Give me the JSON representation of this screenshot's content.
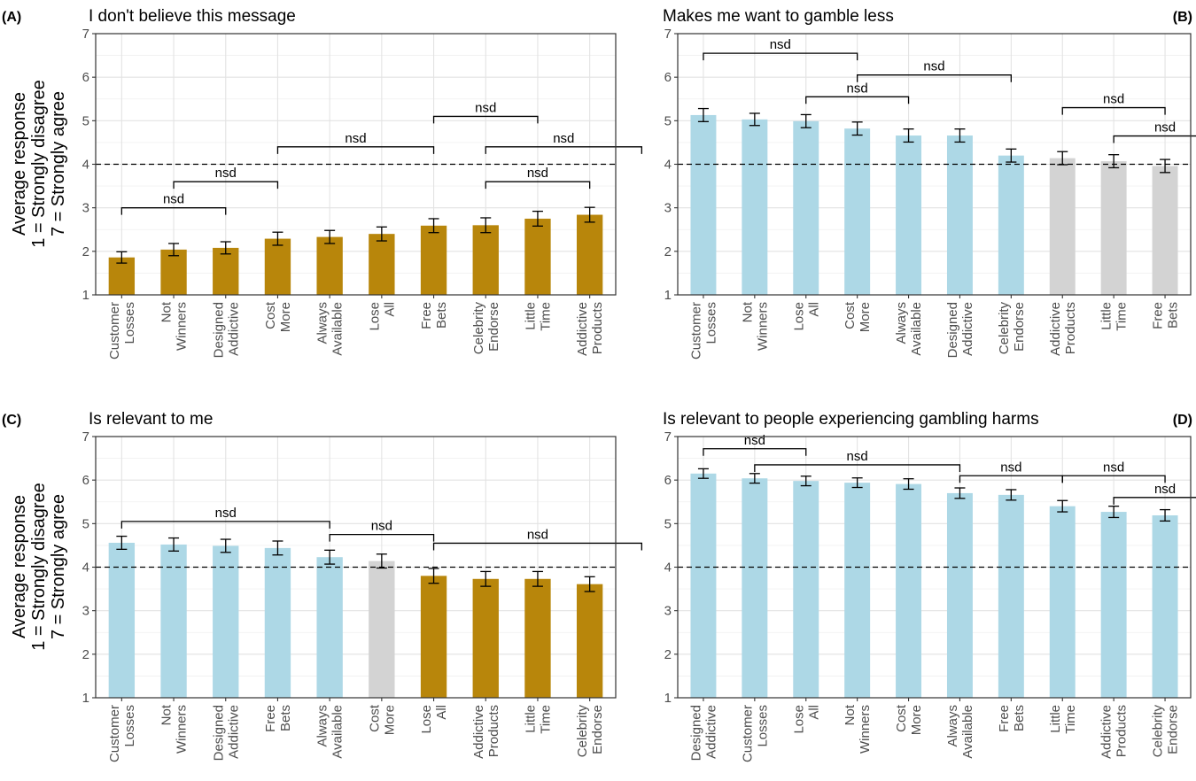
{
  "colors": {
    "gold": "#b8860b",
    "blue": "#add8e6",
    "grey": "#d3d3d3"
  },
  "chart_data": [
    {
      "type": "bar",
      "panel": "(A)",
      "title": "I don't believe this message",
      "ylabel_lines": [
        "Average response",
        "1 = Strongly disagree",
        "7 = Strongly agree"
      ],
      "ylim": [
        1,
        7
      ],
      "yticks": [
        "1",
        "2",
        "3",
        "4",
        "5",
        "6",
        "7"
      ],
      "reference_line": 4,
      "categories": [
        [
          "Customer",
          "Losses"
        ],
        [
          "Not",
          "Winners"
        ],
        [
          "Designed",
          "Addictive"
        ],
        [
          "Cost",
          "More"
        ],
        [
          "Always",
          "Available"
        ],
        [
          "Lose",
          "All"
        ],
        [
          "Free",
          "Bets"
        ],
        [
          "Celebrity",
          "Endorse"
        ],
        [
          "Little",
          "Time"
        ],
        [
          "Addictive",
          "Products"
        ]
      ],
      "values": [
        1.86,
        2.04,
        2.08,
        2.29,
        2.33,
        2.4,
        2.59,
        2.6,
        2.75,
        2.84
      ],
      "errors": [
        0.13,
        0.14,
        0.14,
        0.15,
        0.15,
        0.16,
        0.16,
        0.17,
        0.17,
        0.17
      ],
      "bar_colors": [
        "gold",
        "gold",
        "gold",
        "gold",
        "gold",
        "gold",
        "gold",
        "gold",
        "gold",
        "gold"
      ],
      "brackets": [
        {
          "from": 0,
          "to": 2,
          "y": 3.0,
          "label": "nsd"
        },
        {
          "from": 1,
          "to": 3,
          "y": 3.6,
          "label": "nsd"
        },
        {
          "from": 3,
          "to": 6,
          "y": 4.4,
          "label": "nsd"
        },
        {
          "from": 6,
          "to": 8,
          "y": 5.1,
          "label": "nsd"
        },
        {
          "from": 7,
          "to": 10,
          "y": 4.4,
          "label": "nsd"
        },
        {
          "from": 7,
          "to": 9,
          "y": 3.6,
          "label": "nsd"
        }
      ]
    },
    {
      "type": "bar",
      "panel": "(B)",
      "title": "Makes me want to gamble less",
      "ylabel_lines": [],
      "ylim": [
        1,
        7
      ],
      "yticks": [
        "1",
        "2",
        "3",
        "4",
        "5",
        "6",
        "7"
      ],
      "reference_line": 4,
      "categories": [
        [
          "Customer",
          "Losses"
        ],
        [
          "Not",
          "Winners"
        ],
        [
          "Lose",
          "All"
        ],
        [
          "Cost",
          "More"
        ],
        [
          "Always",
          "Available"
        ],
        [
          "Designed",
          "Addictive"
        ],
        [
          "Celebrity",
          "Endorse"
        ],
        [
          "Addictive",
          "Products"
        ],
        [
          "Little",
          "Time"
        ],
        [
          "Free",
          "Bets"
        ]
      ],
      "values": [
        5.13,
        5.03,
        4.99,
        4.82,
        4.66,
        4.66,
        4.2,
        4.14,
        4.07,
        3.96
      ],
      "errors": [
        0.15,
        0.14,
        0.15,
        0.15,
        0.15,
        0.15,
        0.15,
        0.15,
        0.15,
        0.15
      ],
      "bar_colors": [
        "blue",
        "blue",
        "blue",
        "blue",
        "blue",
        "blue",
        "blue",
        "grey",
        "grey",
        "grey"
      ],
      "brackets": [
        {
          "from": 0,
          "to": 3,
          "y": 6.55,
          "label": "nsd"
        },
        {
          "from": 2,
          "to": 4,
          "y": 5.55,
          "label": "nsd"
        },
        {
          "from": 3,
          "to": 6,
          "y": 6.05,
          "label": "nsd"
        },
        {
          "from": 7,
          "to": 9,
          "y": 5.3,
          "label": "nsd"
        },
        {
          "from": 8,
          "to": 10,
          "y": 4.65,
          "label": "nsd"
        }
      ]
    },
    {
      "type": "bar",
      "panel": "(C)",
      "title": "Is relevant to me",
      "ylabel_lines": [
        "Average response",
        "1 = Strongly disagree",
        "7 = Strongly agree"
      ],
      "ylim": [
        1,
        7
      ],
      "yticks": [
        "1",
        "2",
        "3",
        "4",
        "5",
        "6",
        "7"
      ],
      "reference_line": 4,
      "categories": [
        [
          "Customer",
          "Losses"
        ],
        [
          "Not",
          "Winners"
        ],
        [
          "Designed",
          "Addictive"
        ],
        [
          "Free",
          "Bets"
        ],
        [
          "Always",
          "Available"
        ],
        [
          "Cost",
          "More"
        ],
        [
          "Lose",
          "All"
        ],
        [
          "Addictive",
          "Products"
        ],
        [
          "Little",
          "Time"
        ],
        [
          "Celebrity",
          "Endorse"
        ]
      ],
      "values": [
        4.56,
        4.52,
        4.49,
        4.44,
        4.23,
        4.14,
        3.8,
        3.73,
        3.73,
        3.61
      ],
      "errors": [
        0.15,
        0.15,
        0.15,
        0.16,
        0.16,
        0.16,
        0.17,
        0.17,
        0.17,
        0.17
      ],
      "bar_colors": [
        "blue",
        "blue",
        "blue",
        "blue",
        "blue",
        "grey",
        "gold",
        "gold",
        "gold",
        "gold"
      ],
      "brackets": [
        {
          "from": 0,
          "to": 4,
          "y": 5.05,
          "label": "nsd"
        },
        {
          "from": 4,
          "to": 6,
          "y": 4.75,
          "label": "nsd"
        },
        {
          "from": 6,
          "to": 10,
          "y": 4.55,
          "label": "nsd"
        }
      ]
    },
    {
      "type": "bar",
      "panel": "(D)",
      "title": "Is relevant to people experiencing gambling harms",
      "ylabel_lines": [],
      "ylim": [
        1,
        7
      ],
      "yticks": [
        "1",
        "2",
        "3",
        "4",
        "5",
        "6",
        "7"
      ],
      "reference_line": 4,
      "categories": [
        [
          "Designed",
          "Addictive"
        ],
        [
          "Customer",
          "Losses"
        ],
        [
          "Lose",
          "All"
        ],
        [
          "Not",
          "Winners"
        ],
        [
          "Cost",
          "More"
        ],
        [
          "Always",
          "Available"
        ],
        [
          "Free",
          "Bets"
        ],
        [
          "Little",
          "Time"
        ],
        [
          "Addictive",
          "Products"
        ],
        [
          "Celebrity",
          "Endorse"
        ]
      ],
      "values": [
        6.15,
        6.04,
        5.98,
        5.94,
        5.91,
        5.7,
        5.66,
        5.4,
        5.27,
        5.19
      ],
      "errors": [
        0.11,
        0.11,
        0.11,
        0.11,
        0.12,
        0.12,
        0.12,
        0.13,
        0.13,
        0.13
      ],
      "bar_colors": [
        "blue",
        "blue",
        "blue",
        "blue",
        "blue",
        "blue",
        "blue",
        "blue",
        "blue",
        "blue"
      ],
      "brackets": [
        {
          "from": 0,
          "to": 2,
          "y": 6.72,
          "label": "nsd"
        },
        {
          "from": 1,
          "to": 5,
          "y": 6.35,
          "label": "nsd"
        },
        {
          "from": 5,
          "to": 7,
          "y": 6.1,
          "label": "nsd"
        },
        {
          "from": 7,
          "to": 9,
          "y": 6.1,
          "label": "nsd"
        },
        {
          "from": 8,
          "to": 10,
          "y": 5.6,
          "label": "nsd"
        }
      ]
    }
  ]
}
